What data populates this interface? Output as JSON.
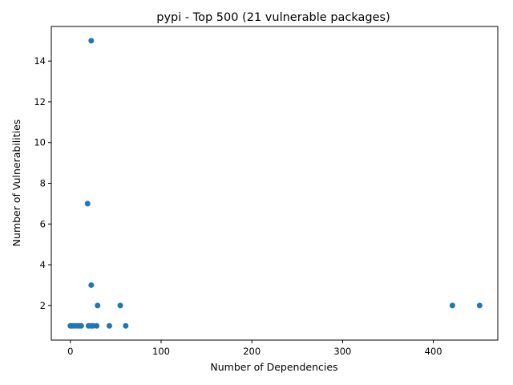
{
  "chart_data": {
    "type": "scatter",
    "title": "pypi - Top 500 (21 vulnerable packages)",
    "xlabel": "Number of Dependencies",
    "ylabel": "Number of Vulnerabilities",
    "xlim": [
      -21,
      471
    ],
    "ylim": [
      0.3,
      15.7
    ],
    "xticks": [
      0,
      100,
      200,
      300,
      400
    ],
    "yticks": [
      2,
      4,
      6,
      8,
      10,
      12,
      14
    ],
    "grid": false,
    "color": "#1f77b4",
    "points": [
      {
        "x": 0,
        "y": 1
      },
      {
        "x": 2,
        "y": 1
      },
      {
        "x": 4,
        "y": 1
      },
      {
        "x": 7,
        "y": 1
      },
      {
        "x": 10,
        "y": 1
      },
      {
        "x": 12,
        "y": 1
      },
      {
        "x": 20,
        "y": 1
      },
      {
        "x": 23,
        "y": 1
      },
      {
        "x": 25,
        "y": 1
      },
      {
        "x": 29,
        "y": 1
      },
      {
        "x": 43,
        "y": 1
      },
      {
        "x": 61,
        "y": 1
      },
      {
        "x": 30,
        "y": 2
      },
      {
        "x": 55,
        "y": 2
      },
      {
        "x": 421,
        "y": 2
      },
      {
        "x": 451,
        "y": 2
      },
      {
        "x": 23,
        "y": 3
      },
      {
        "x": 19,
        "y": 7
      },
      {
        "x": 23,
        "y": 15
      }
    ]
  }
}
